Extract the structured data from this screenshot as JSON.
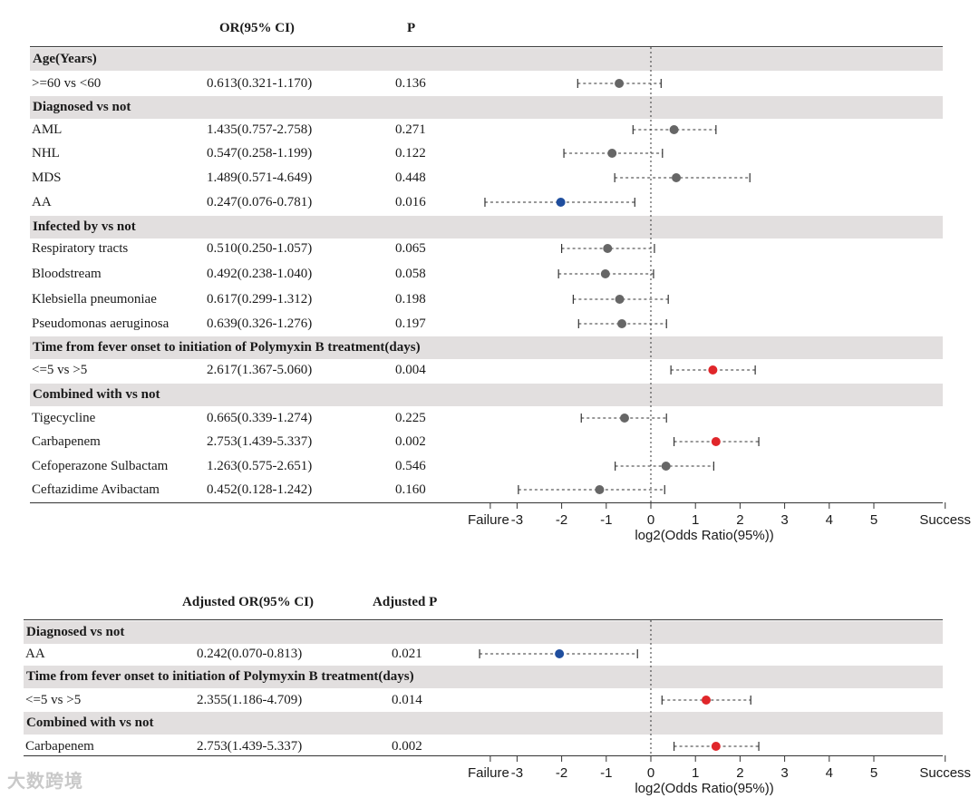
{
  "colors": {
    "band": "#e2dfdf",
    "gray_point": "#666666",
    "blue_point": "#1f4e9e",
    "red_point": "#e0262a",
    "line": "#333333"
  },
  "chart_data": [
    {
      "type": "forest",
      "columns": {
        "or": "OR(95% CI)",
        "p": "P"
      },
      "xlabel": "log2(Odds Ratio(95%))",
      "xlim": [
        -3.6,
        6.6
      ],
      "xticks": [
        -3,
        -2,
        -1,
        0,
        1,
        2,
        3,
        4,
        5
      ],
      "left_label": "Failure",
      "right_label": "Success",
      "rows": [
        {
          "kind": "group",
          "label": "Age(Years)"
        },
        {
          "kind": "item",
          "label": ">=60 vs <60",
          "or_ci": "0.613(0.321-1.170)",
          "p": "0.136",
          "est": -0.71,
          "lo": -1.64,
          "hi": 0.23,
          "color": "gray"
        },
        {
          "kind": "group",
          "label": "Diagnosed vs not"
        },
        {
          "kind": "item",
          "label": "AML",
          "or_ci": "1.435(0.757-2.758)",
          "p": "0.271",
          "est": 0.52,
          "lo": -0.4,
          "hi": 1.46,
          "color": "gray"
        },
        {
          "kind": "item",
          "label": "NHL",
          "or_ci": "0.547(0.258-1.199)",
          "p": "0.122",
          "est": -0.87,
          "lo": -1.95,
          "hi": 0.26,
          "color": "gray"
        },
        {
          "kind": "item",
          "label": "MDS",
          "or_ci": "1.489(0.571-4.649)",
          "p": "0.448",
          "est": 0.57,
          "lo": -0.81,
          "hi": 2.22,
          "color": "gray"
        },
        {
          "kind": "item",
          "label": "AA",
          "or_ci": "0.247(0.076-0.781)",
          "p": "0.016",
          "est": -2.02,
          "lo": -3.72,
          "hi": -0.36,
          "color": "blue"
        },
        {
          "kind": "group",
          "label": "Infected by vs not"
        },
        {
          "kind": "item",
          "label": "Respiratory tracts",
          "or_ci": "0.510(0.250-1.057)",
          "p": "0.065",
          "est": -0.97,
          "lo": -2.0,
          "hi": 0.08,
          "color": "gray"
        },
        {
          "kind": "item",
          "label": "Bloodstream",
          "or_ci": "0.492(0.238-1.040)",
          "p": "0.058",
          "est": -1.02,
          "lo": -2.07,
          "hi": 0.06,
          "color": "gray"
        },
        {
          "kind": "item",
          "label": "Klebsiella pneumoniae",
          "or_ci": "0.617(0.299-1.312)",
          "p": "0.198",
          "est": -0.7,
          "lo": -1.74,
          "hi": 0.39,
          "color": "gray"
        },
        {
          "kind": "item",
          "label": "Pseudomonas aeruginosa",
          "or_ci": "0.639(0.326-1.276)",
          "p": "0.197",
          "est": -0.65,
          "lo": -1.62,
          "hi": 0.35,
          "color": "gray"
        },
        {
          "kind": "group",
          "label": "Time from fever onset to initiation of Polymyxin B treatment(days)"
        },
        {
          "kind": "item",
          "label": "<=5 vs >5",
          "or_ci": "2.617(1.367-5.060)",
          "p": "0.004",
          "est": 1.39,
          "lo": 0.45,
          "hi": 2.34,
          "color": "red"
        },
        {
          "kind": "group",
          "label": "Combined with vs not"
        },
        {
          "kind": "item",
          "label": "Tigecycline",
          "or_ci": "0.665(0.339-1.274)",
          "p": "0.225",
          "est": -0.59,
          "lo": -1.56,
          "hi": 0.35,
          "color": "gray"
        },
        {
          "kind": "item",
          "label": "Carbapenem",
          "or_ci": "2.753(1.439-5.337)",
          "p": "0.002",
          "est": 1.46,
          "lo": 0.52,
          "hi": 2.42,
          "color": "red"
        },
        {
          "kind": "item",
          "label": "Cefoperazone Sulbactam",
          "or_ci": "1.263(0.575-2.651)",
          "p": "0.546",
          "est": 0.34,
          "lo": -0.8,
          "hi": 1.41,
          "color": "gray"
        },
        {
          "kind": "item",
          "label": "Ceftazidime Avibactam",
          "or_ci": "0.452(0.128-1.242)",
          "p": "0.160",
          "est": -1.15,
          "lo": -2.97,
          "hi": 0.31,
          "color": "gray"
        }
      ]
    },
    {
      "type": "forest",
      "columns": {
        "or": "Adjusted OR(95% CI)",
        "p": "Adjusted P"
      },
      "xlabel": "log2(Odds Ratio(95%))",
      "xlim": [
        -3.6,
        6.6
      ],
      "xticks": [
        -3,
        -2,
        -1,
        0,
        1,
        2,
        3,
        4,
        5
      ],
      "left_label": "Failure",
      "right_label": "Success",
      "rows": [
        {
          "kind": "group",
          "label": "Diagnosed vs not"
        },
        {
          "kind": "item",
          "label": "AA",
          "or_ci": "0.242(0.070-0.813)",
          "p": "0.021",
          "est": -2.05,
          "lo": -3.84,
          "hi": -0.3,
          "color": "blue"
        },
        {
          "kind": "group",
          "label": "Time from fever onset to initiation of Polymyxin B treatment(days)"
        },
        {
          "kind": "item",
          "label": "<=5 vs >5",
          "or_ci": "2.355(1.186-4.709)",
          "p": "0.014",
          "est": 1.24,
          "lo": 0.25,
          "hi": 2.24,
          "color": "red"
        },
        {
          "kind": "group",
          "label": "Combined with vs not"
        },
        {
          "kind": "item",
          "label": "Carbapenem",
          "or_ci": "2.753(1.439-5.337)",
          "p": "0.002",
          "est": 1.46,
          "lo": 0.52,
          "hi": 2.42,
          "color": "red"
        }
      ]
    }
  ],
  "watermark": "大数跨境"
}
